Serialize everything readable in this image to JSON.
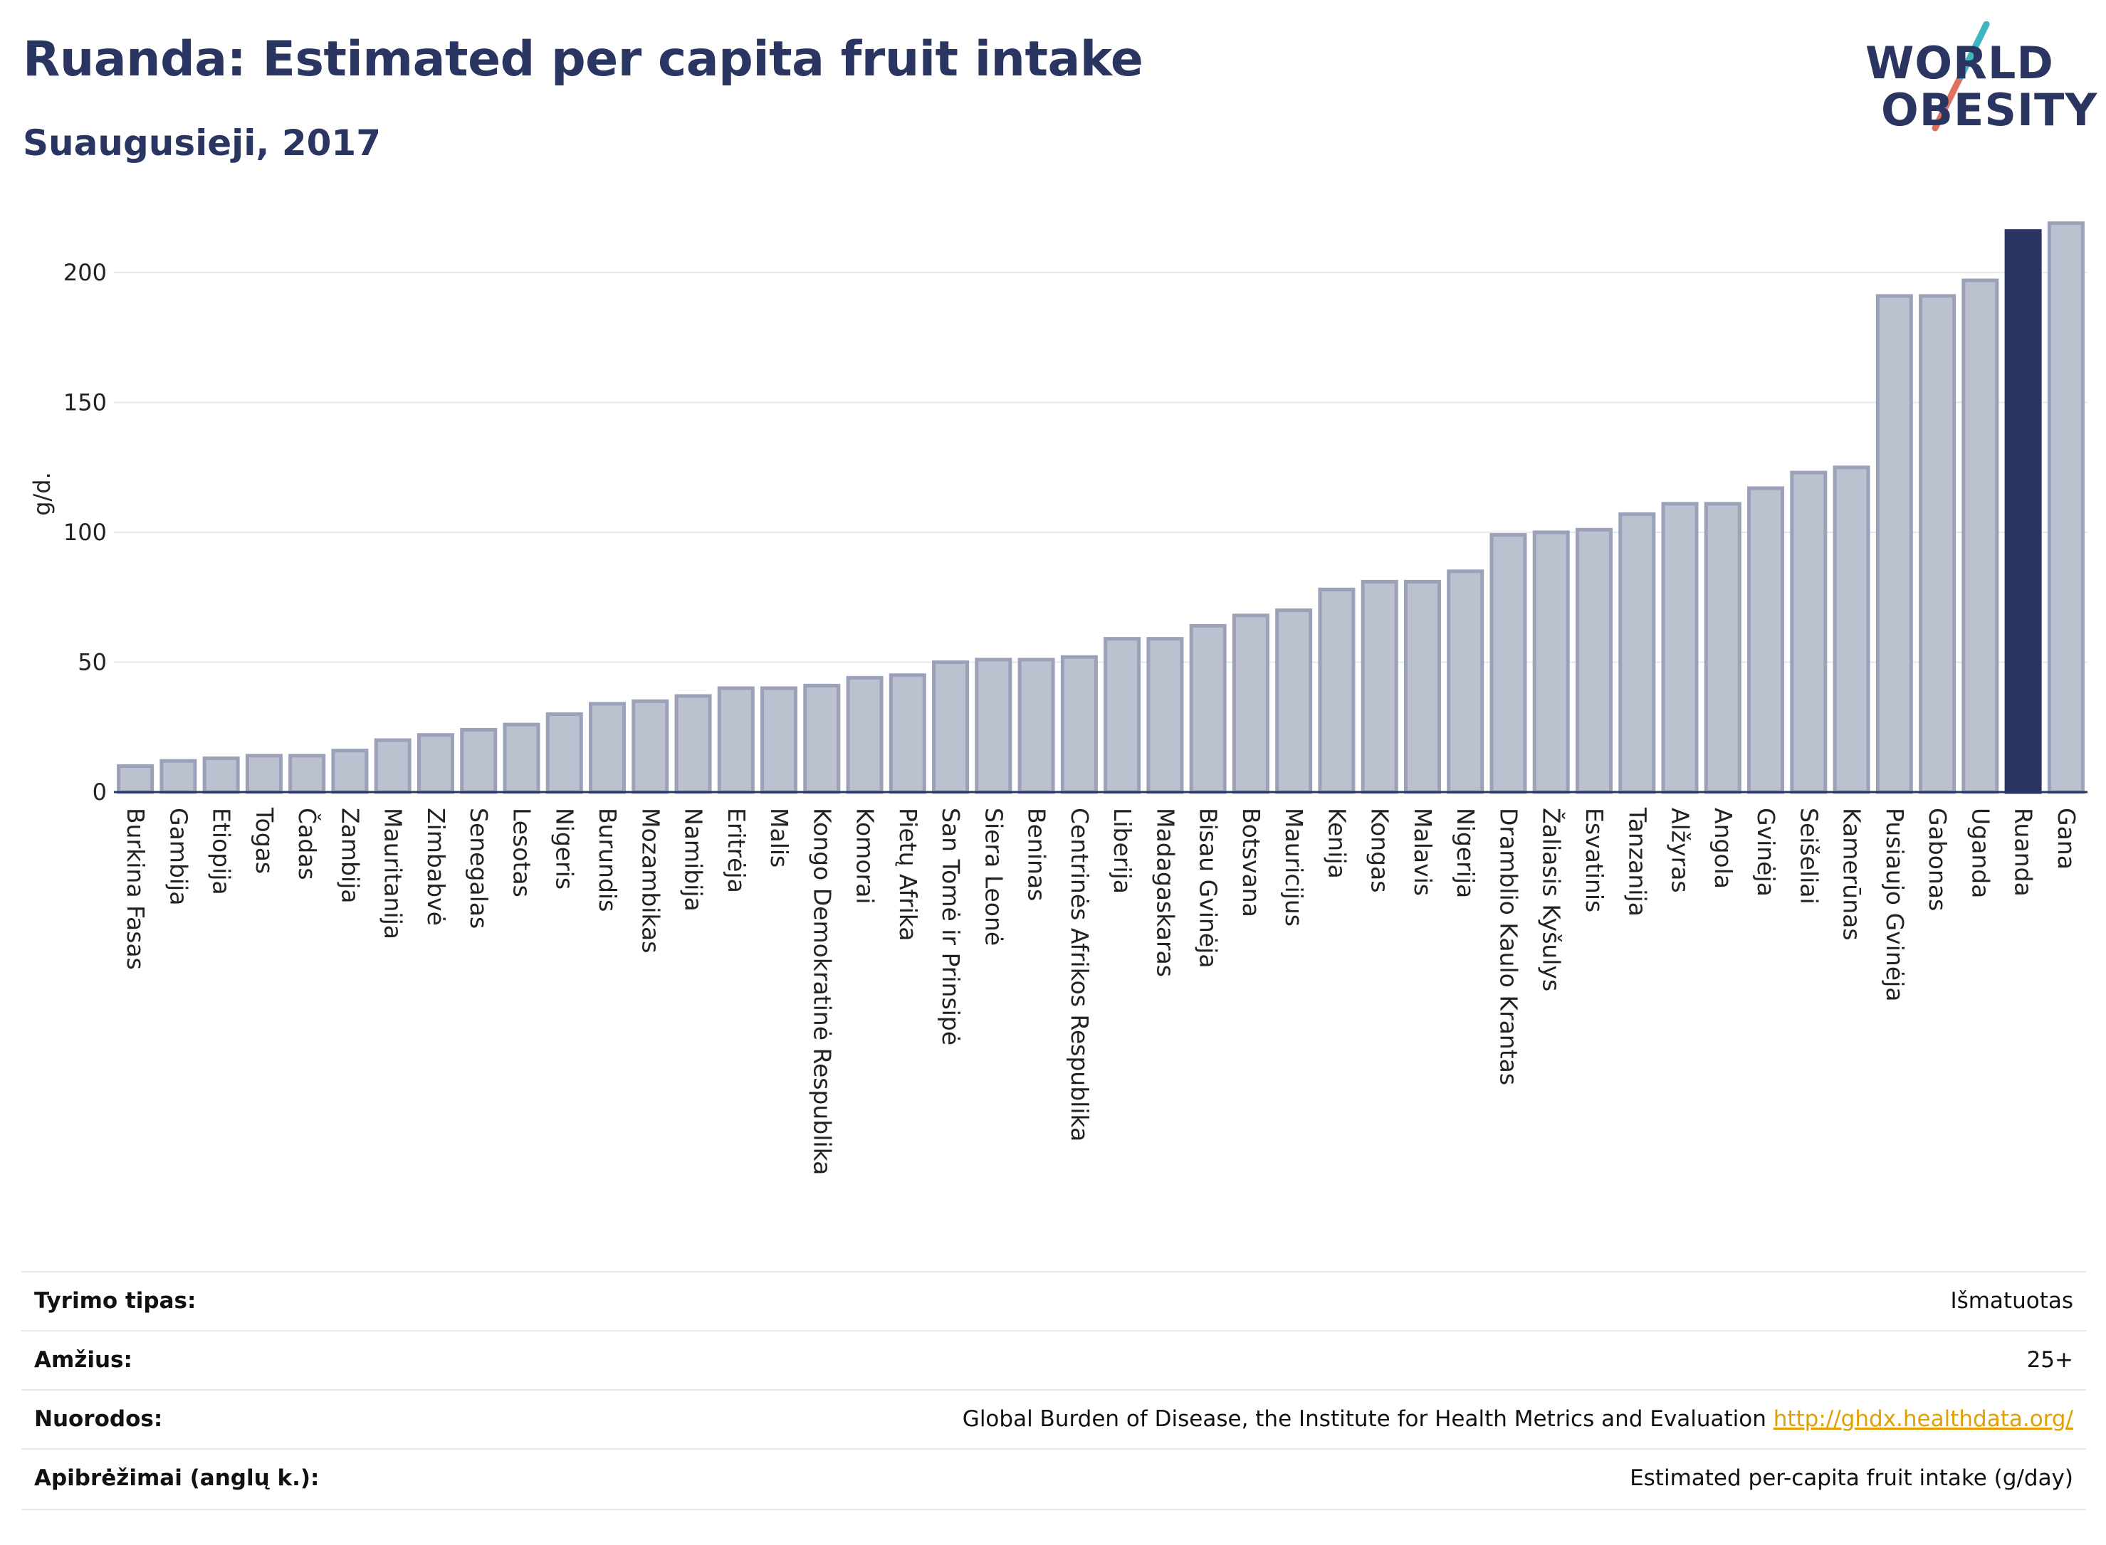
{
  "header": {
    "title": "Ruanda: Estimated per capita fruit intake",
    "subtitle": "Suaugusieji, 2017"
  },
  "logo": {
    "line1": "WORLD",
    "line2": "OBESITY"
  },
  "colors": {
    "bar_fill": "#bcc1d0",
    "bar_stroke": "#9aa1b8",
    "highlight": "#2b3561",
    "text": "#2b3561",
    "grid": "#e6e8ec",
    "link": "#e0a100"
  },
  "chart_data": {
    "type": "bar",
    "ylabel": "g/d.",
    "ylim": [
      0,
      225
    ],
    "yticks": [
      0,
      50,
      100,
      150,
      200
    ],
    "grid": true,
    "highlight": "Ruanda",
    "categories": [
      "Burkina Fasas",
      "Gambija",
      "Etiopija",
      "Togas",
      "Čadas",
      "Zambija",
      "Mauritanija",
      "Zimbabvė",
      "Senegalas",
      "Lesotas",
      "Nigeris",
      "Burundis",
      "Mozambikas",
      "Namibija",
      "Eritrėja",
      "Malis",
      "Kongo Demokratinė Respublika",
      "Komorai",
      "Pietų Afrika",
      "San Tomė ir Prinsipė",
      "Siera Leonė",
      "Beninas",
      "Centrinės Afrikos Respublika",
      "Liberija",
      "Madagaskaras",
      "Bisau Gvinėja",
      "Botsvana",
      "Mauricijus",
      "Kenija",
      "Kongas",
      "Malavis",
      "Nigerija",
      "Dramblio Kaulo Krantas",
      "Žaliasis Kyšulys",
      "Esvatinis",
      "Tanzanija",
      "Alžyras",
      "Angola",
      "Gvinėja",
      "Seišeliai",
      "Kamerūnas",
      "Pusiaujo Gvinėja",
      "Gabonas",
      "Uganda",
      "Ruanda",
      "Gana"
    ],
    "values": [
      10,
      12,
      13,
      14,
      14,
      16,
      20,
      22,
      24,
      26,
      30,
      34,
      35,
      37,
      40,
      40,
      41,
      44,
      45,
      50,
      51,
      51,
      52,
      59,
      59,
      64,
      68,
      70,
      78,
      81,
      81,
      85,
      99,
      100,
      101,
      107,
      111,
      111,
      117,
      123,
      125,
      191,
      191,
      197,
      216,
      219
    ]
  },
  "meta": {
    "rows": [
      {
        "label": "Tyrimo tipas:",
        "value": "Išmatuotas"
      },
      {
        "label": "Amžius:",
        "value": "25+"
      },
      {
        "label": "Nuorodos:",
        "value": "Global Burden of Disease, the Institute for Health Metrics and Evaluation",
        "link": "http://ghdx.healthdata.org/"
      },
      {
        "label": "Apibrėžimai (anglų k.):",
        "value": "Estimated per-capita fruit intake (g/day)"
      }
    ]
  }
}
